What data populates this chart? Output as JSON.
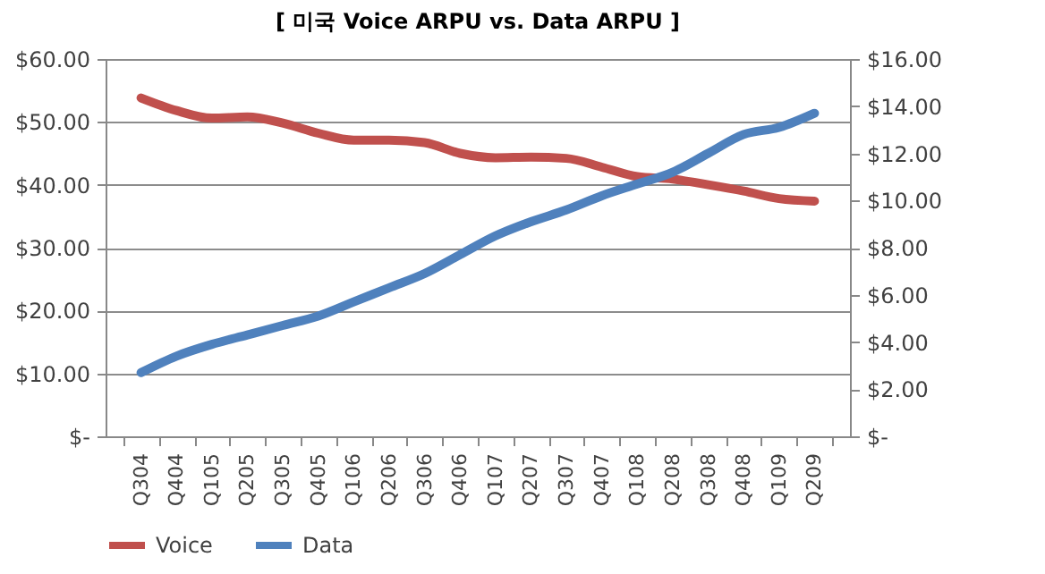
{
  "chart_data": {
    "type": "line",
    "title": "[ 미국 Voice ARPU vs. Data ARPU ]",
    "categories": [
      "Q304",
      "Q404",
      "Q105",
      "Q205",
      "Q305",
      "Q405",
      "Q106",
      "Q206",
      "Q306",
      "Q406",
      "Q107",
      "Q207",
      "Q307",
      "Q407",
      "Q108",
      "Q208",
      "Q308",
      "Q408",
      "Q109",
      "Q209"
    ],
    "series": [
      {
        "name": "Voice",
        "color": "#c0504d",
        "values": [
          53.8,
          51.8,
          50.6,
          50.8,
          49.8,
          48.2,
          47.1,
          47.1,
          46.7,
          45.0,
          44.3,
          44.4,
          44.2,
          42.8,
          41.3,
          40.9,
          40.0,
          39.0,
          37.8,
          37.4
        ]
      },
      {
        "name": "Data",
        "color": "#4f81bd",
        "axis": "y2",
        "values": [
          2.7,
          3.4,
          3.9,
          4.3,
          4.7,
          5.1,
          5.7,
          6.3,
          6.9,
          7.7,
          8.5,
          9.1,
          9.6,
          10.2,
          10.7,
          11.2,
          12.0,
          12.8,
          13.1,
          13.7
        ]
      }
    ],
    "ylim": [
      0,
      60
    ],
    "yticks": [
      {
        "value": 0,
        "label": "$-"
      },
      {
        "value": 10,
        "label": "$10.00"
      },
      {
        "value": 20,
        "label": "$20.00"
      },
      {
        "value": 30,
        "label": "$30.00"
      },
      {
        "value": 40,
        "label": "$40.00"
      },
      {
        "value": 50,
        "label": "$50.00"
      },
      {
        "value": 60,
        "label": "$60.00"
      }
    ],
    "y2lim": [
      0,
      16
    ],
    "y2ticks": [
      {
        "value": 0,
        "label": "$-"
      },
      {
        "value": 2,
        "label": "$2.00"
      },
      {
        "value": 4,
        "label": "$4.00"
      },
      {
        "value": 6,
        "label": "$6.00"
      },
      {
        "value": 8,
        "label": "$8.00"
      },
      {
        "value": 10,
        "label": "$10.00"
      },
      {
        "value": 12,
        "label": "$12.00"
      },
      {
        "value": 14,
        "label": "$14.00"
      },
      {
        "value": 16,
        "label": "$16.00"
      }
    ],
    "grid": "y",
    "legend": "bottom",
    "marker": "none",
    "line_style": "solid"
  }
}
